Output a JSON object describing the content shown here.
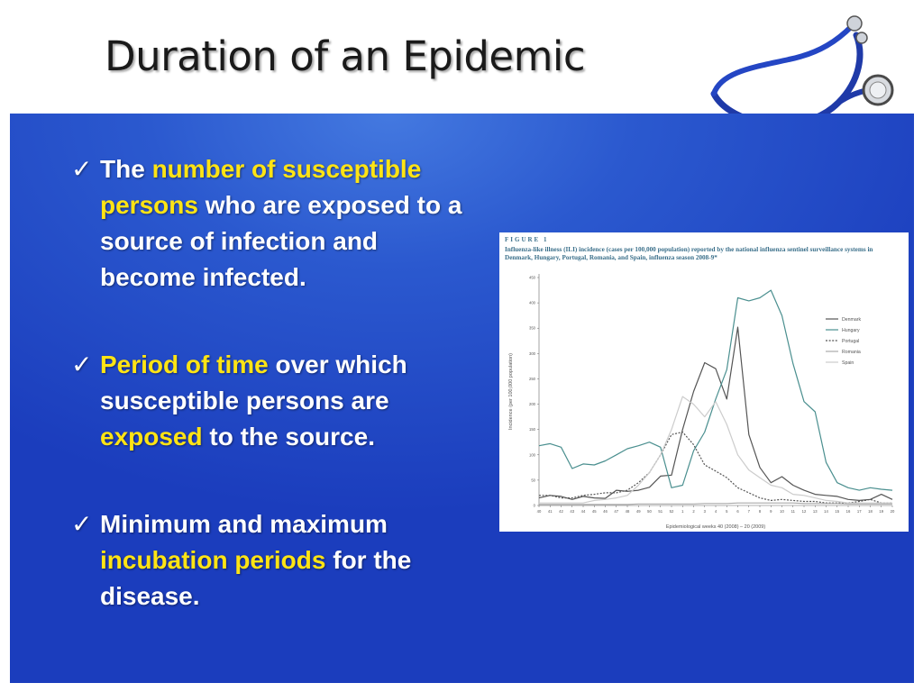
{
  "slide": {
    "title": "Duration of an Epidemic",
    "bullets": [
      {
        "segments": [
          {
            "text": "The ",
            "highlight": false
          },
          {
            "text": "number of susceptible persons",
            "highlight": true
          },
          {
            "text": " who are exposed to a source of infection and become infected.",
            "highlight": false
          }
        ]
      },
      {
        "segments": [
          {
            "text": "Period of time",
            "highlight": true
          },
          {
            "text": " over which susceptible persons are ",
            "highlight": false
          },
          {
            "text": "exposed",
            "highlight": true
          },
          {
            "text": " to the source.",
            "highlight": false
          }
        ]
      },
      {
        "segments": [
          {
            "text": "Minimum and maximum ",
            "highlight": false
          },
          {
            "text": "incubation periods",
            "highlight": true
          },
          {
            "text": " for the disease.",
            "highlight": false
          }
        ]
      }
    ],
    "check_glyph": "✓",
    "colors": {
      "text": "#ffffff",
      "highlight": "#ffe414",
      "panel": "#2b59cf"
    },
    "icons": [
      "stethoscope-icon",
      "checkmark-icon"
    ]
  },
  "figure": {
    "label": "FIGURE 1",
    "caption": "Influenza-like illness (ILI) incidence (cases per 100,000 population) reported by the national influenza sentinel surveillance systems in Denmark, Hungary, Portugal, Romania, and Spain, influenza season 2008-9*"
  },
  "chart_data": {
    "type": "line",
    "x": [
      "40",
      "41",
      "42",
      "43",
      "44",
      "45",
      "46",
      "47",
      "48",
      "49",
      "50",
      "51",
      "52",
      "1",
      "2",
      "3",
      "4",
      "5",
      "6",
      "7",
      "8",
      "9",
      "10",
      "11",
      "12",
      "13",
      "14",
      "15",
      "16",
      "17",
      "18",
      "19",
      "20"
    ],
    "xlabel": "Epidemiological weeks 40 (2008) – 20 (2009)",
    "ylabel": "Incidence (per 100,000 population)",
    "ylim": [
      0,
      450
    ],
    "yticks": [
      0,
      50,
      100,
      150,
      200,
      250,
      300,
      350,
      400,
      450
    ],
    "legend_position": "top-right",
    "series": [
      {
        "name": "Denmark",
        "color": "#555555",
        "style": "solid",
        "values": [
          15,
          20,
          18,
          12,
          18,
          15,
          14,
          30,
          28,
          30,
          36,
          58,
          60,
          150,
          225,
          282,
          270,
          210,
          352,
          140,
          75,
          45,
          57,
          40,
          30,
          22,
          20,
          18,
          12,
          10,
          12,
          22,
          12
        ]
      },
      {
        "name": "Hungary",
        "color": "#4a8f8f",
        "style": "solid",
        "values": [
          118,
          122,
          115,
          73,
          82,
          80,
          88,
          100,
          112,
          118,
          125,
          115,
          35,
          40,
          108,
          145,
          210,
          268,
          410,
          404,
          410,
          425,
          375,
          280,
          205,
          185,
          85,
          45,
          35,
          30,
          35,
          32,
          30
        ]
      },
      {
        "name": "Portugal",
        "color": "#555555",
        "style": "dotted",
        "values": [
          20,
          20,
          15,
          15,
          20,
          22,
          25,
          25,
          30,
          45,
          65,
          100,
          140,
          145,
          120,
          80,
          68,
          55,
          35,
          25,
          15,
          10,
          12,
          10,
          8,
          8,
          5,
          5,
          5,
          8,
          12,
          5,
          5
        ]
      },
      {
        "name": "Romania",
        "color": "#aaaaaa",
        "style": "solid",
        "values": [
          2,
          2,
          2,
          2,
          2,
          2,
          2,
          2,
          2,
          3,
          3,
          3,
          3,
          3,
          3,
          4,
          4,
          4,
          5,
          5,
          5,
          5,
          5,
          5,
          4,
          4,
          4,
          4,
          3,
          3,
          3,
          3,
          3
        ]
      },
      {
        "name": "Spain",
        "color": "#cccccc",
        "style": "solid",
        "values": [
          5,
          5,
          5,
          5,
          5,
          10,
          12,
          15,
          20,
          40,
          65,
          100,
          150,
          215,
          200,
          175,
          205,
          160,
          100,
          70,
          55,
          40,
          35,
          22,
          20,
          15,
          10,
          8,
          5,
          5,
          5,
          5,
          5
        ]
      }
    ]
  }
}
